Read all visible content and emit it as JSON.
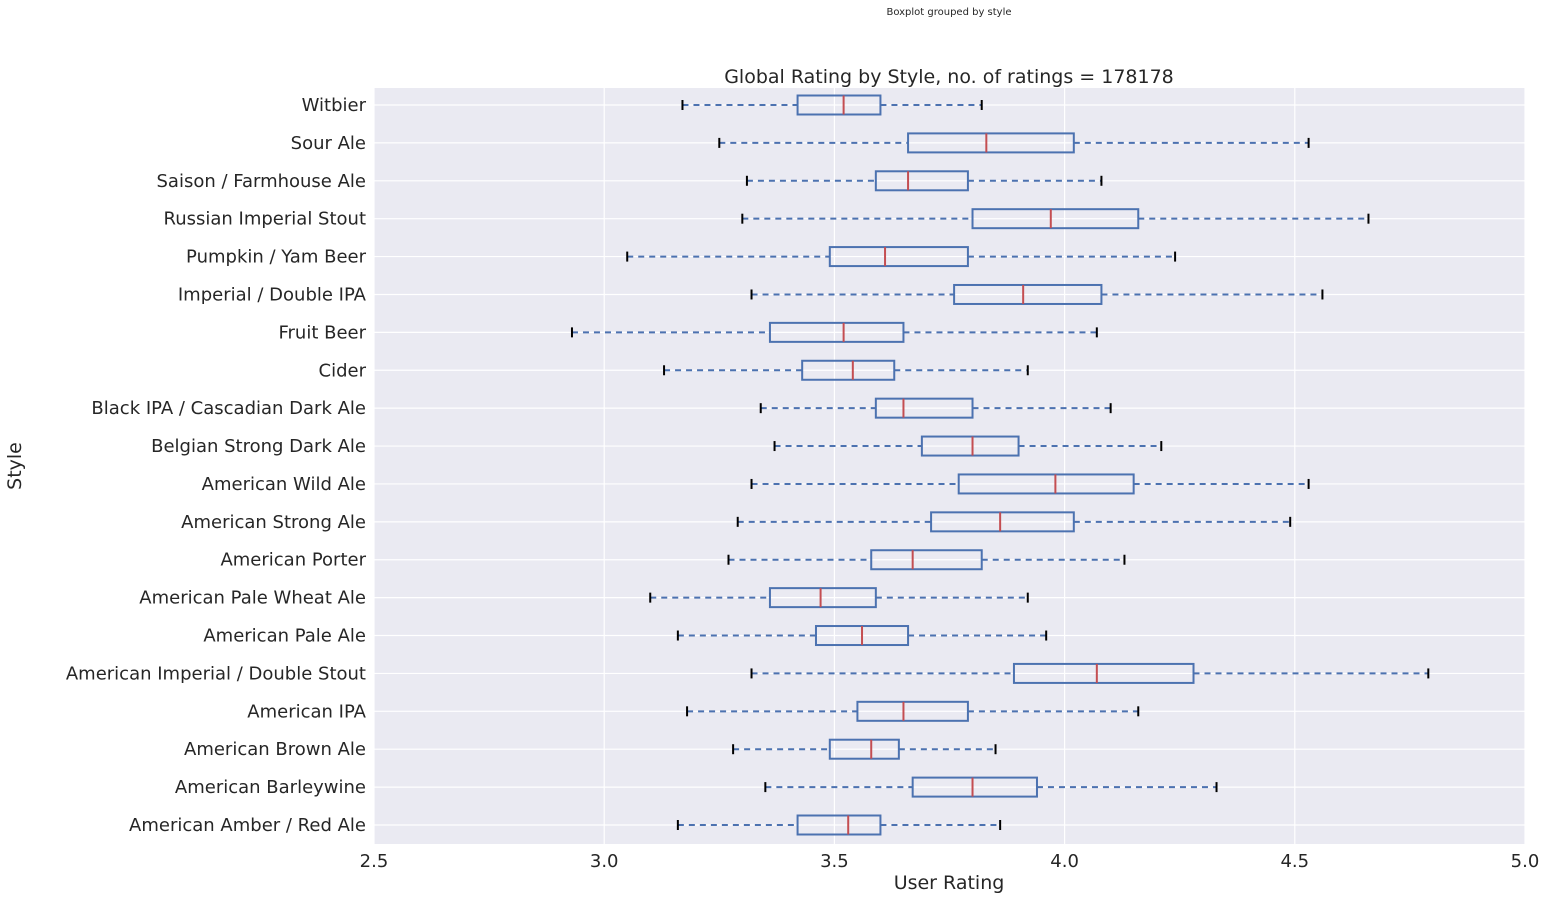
{
  "chart_data": {
    "type": "boxplot",
    "orientation": "horizontal",
    "suptitle": "Boxplot grouped by style",
    "title": "Global Rating by Style, no. of ratings = 178178",
    "xlabel": "User Rating",
    "ylabel": "Style",
    "xlim": [
      2.5,
      5.0
    ],
    "xticks": [
      "2.5",
      "3.0",
      "3.5",
      "4.0",
      "4.5",
      "5.0"
    ],
    "grid": true,
    "colors": {
      "background": "#eaeaf2",
      "grid": "#ffffff",
      "box": "#4c72b0",
      "median": "#c44e52",
      "cap": "#000000"
    },
    "categories": [
      "American Amber / Red Ale",
      "American Barleywine",
      "American Brown Ale",
      "American IPA",
      "American Imperial / Double Stout",
      "American Pale Ale",
      "American Pale Wheat Ale",
      "American Porter",
      "American Strong Ale",
      "American Wild Ale",
      "Belgian Strong Dark Ale",
      "Black IPA / Cascadian Dark Ale",
      "Cider",
      "Fruit Beer",
      "Imperial / Double IPA",
      "Pumpkin / Yam Beer",
      "Russian Imperial Stout",
      "Saison / Farmhouse Ale",
      "Sour Ale",
      "Witbier"
    ],
    "boxes": [
      {
        "whislo": 3.16,
        "q1": 3.42,
        "med": 3.53,
        "q3": 3.6,
        "whishi": 3.86
      },
      {
        "whislo": 3.35,
        "q1": 3.67,
        "med": 3.8,
        "q3": 3.94,
        "whishi": 4.33
      },
      {
        "whislo": 3.28,
        "q1": 3.49,
        "med": 3.58,
        "q3": 3.64,
        "whishi": 3.85
      },
      {
        "whislo": 3.18,
        "q1": 3.55,
        "med": 3.65,
        "q3": 3.79,
        "whishi": 4.16
      },
      {
        "whislo": 3.32,
        "q1": 3.89,
        "med": 4.07,
        "q3": 4.28,
        "whishi": 4.79
      },
      {
        "whislo": 3.16,
        "q1": 3.46,
        "med": 3.56,
        "q3": 3.66,
        "whishi": 3.96
      },
      {
        "whislo": 3.1,
        "q1": 3.36,
        "med": 3.47,
        "q3": 3.59,
        "whishi": 3.92
      },
      {
        "whislo": 3.27,
        "q1": 3.58,
        "med": 3.67,
        "q3": 3.82,
        "whishi": 4.13
      },
      {
        "whislo": 3.29,
        "q1": 3.71,
        "med": 3.86,
        "q3": 4.02,
        "whishi": 4.49
      },
      {
        "whislo": 3.32,
        "q1": 3.77,
        "med": 3.98,
        "q3": 4.15,
        "whishi": 4.53
      },
      {
        "whislo": 3.37,
        "q1": 3.69,
        "med": 3.8,
        "q3": 3.9,
        "whishi": 4.21
      },
      {
        "whislo": 3.34,
        "q1": 3.59,
        "med": 3.65,
        "q3": 3.8,
        "whishi": 4.1
      },
      {
        "whislo": 3.13,
        "q1": 3.43,
        "med": 3.54,
        "q3": 3.63,
        "whishi": 3.92
      },
      {
        "whislo": 2.93,
        "q1": 3.36,
        "med": 3.52,
        "q3": 3.65,
        "whishi": 4.07
      },
      {
        "whislo": 3.32,
        "q1": 3.76,
        "med": 3.91,
        "q3": 4.08,
        "whishi": 4.56
      },
      {
        "whislo": 3.05,
        "q1": 3.49,
        "med": 3.61,
        "q3": 3.79,
        "whishi": 4.24
      },
      {
        "whislo": 3.3,
        "q1": 3.8,
        "med": 3.97,
        "q3": 4.16,
        "whishi": 4.66
      },
      {
        "whislo": 3.31,
        "q1": 3.59,
        "med": 3.66,
        "q3": 3.79,
        "whishi": 4.08
      },
      {
        "whislo": 3.25,
        "q1": 3.66,
        "med": 3.83,
        "q3": 4.02,
        "whishi": 4.53
      },
      {
        "whislo": 3.17,
        "q1": 3.42,
        "med": 3.52,
        "q3": 3.6,
        "whishi": 3.82
      }
    ]
  }
}
